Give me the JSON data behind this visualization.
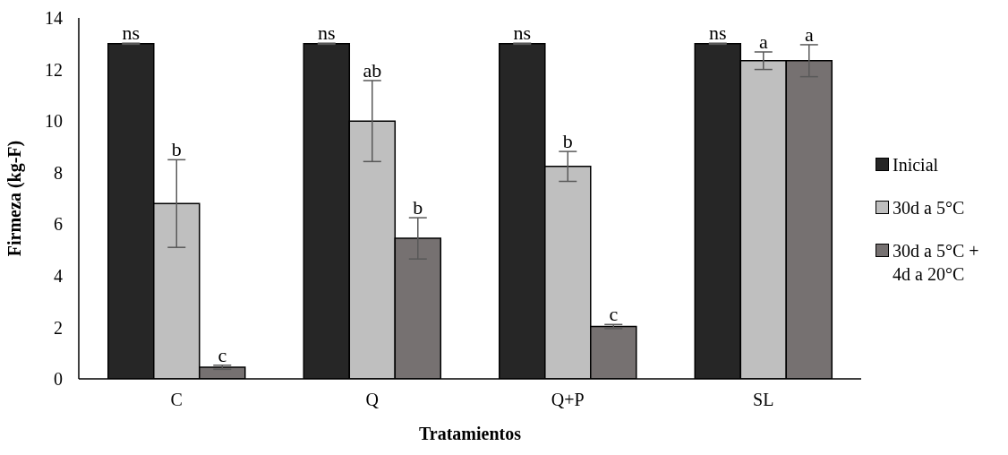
{
  "chart_data": {
    "type": "bar",
    "xlabel": "Tratamientos",
    "ylabel": "Firmeza  (kg-F)",
    "categories": [
      "C",
      "Q",
      "Q+P",
      "SL"
    ],
    "series": [
      {
        "name": "Inicial",
        "color": "#262626",
        "values": [
          13,
          13,
          13,
          13
        ],
        "errors": [
          0.02,
          0.02,
          0.02,
          0.02
        ],
        "value_labels": [
          "ns",
          "ns",
          "ns",
          "ns"
        ]
      },
      {
        "name": "30d a 5°C",
        "color": "#bfbfbf",
        "values": [
          6.8,
          10,
          8.24,
          12.34
        ],
        "errors": [
          1.7,
          1.57,
          0.58,
          0.34
        ],
        "value_labels": [
          "b",
          "ab",
          "b",
          "a"
        ]
      },
      {
        "name": "30d a 5°C + 4d a 20°C",
        "color": "#767171",
        "values": [
          0.45,
          5.45,
          2.03,
          12.34
        ],
        "errors": [
          0.08,
          0.8,
          0.08,
          0.62
        ],
        "value_labels": [
          "c",
          "b",
          "c",
          "a"
        ]
      }
    ],
    "ylim": [
      0,
      14
    ],
    "yticks": [
      0,
      2,
      4,
      6,
      8,
      10,
      12,
      14
    ],
    "grid": false,
    "legend": "right"
  }
}
